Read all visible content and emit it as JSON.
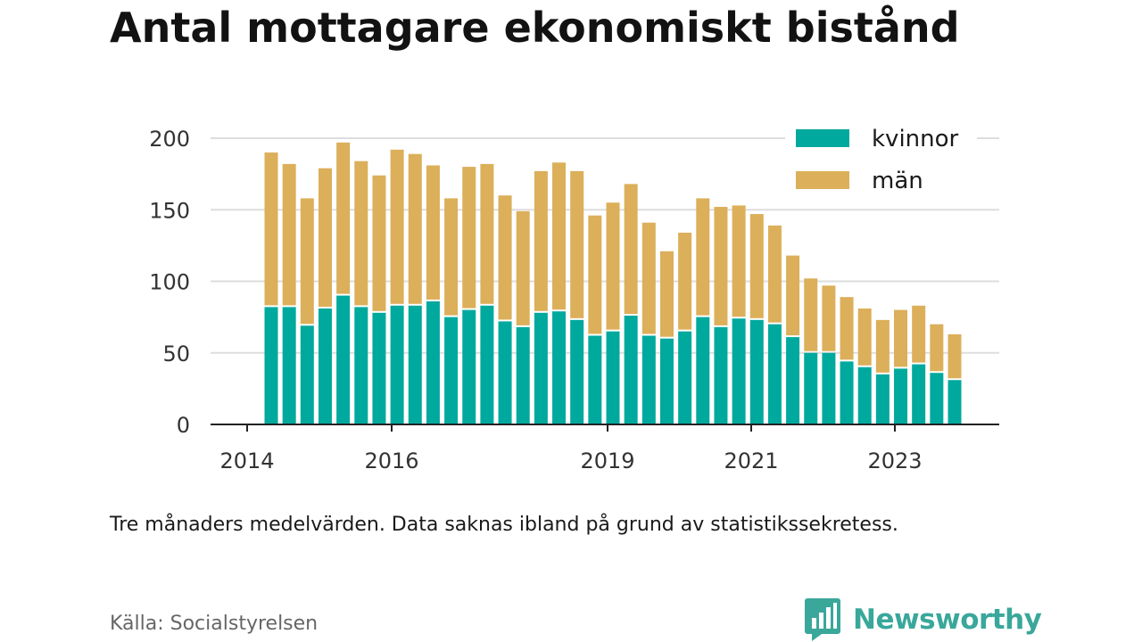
{
  "title": "Antal mottagare ekonomiskt bistånd",
  "note": "Tre månaders medelvärden. Data saknas ibland på grund av statistikssekretess.",
  "source": "Källa: Socialstyrelsen",
  "brand": {
    "name": "Newsworthy",
    "icon": "newsworthy-logo-icon"
  },
  "colors": {
    "kvinnor": "#00a99d",
    "man": "#dcaf5a",
    "grid": "#dddddd",
    "axis": "#222222",
    "brand": "#3aa79b"
  },
  "chart_data": {
    "type": "bar",
    "stacked": true,
    "grid": true,
    "legend_position": "top-right",
    "ylim": [
      0,
      200
    ],
    "y_ticks": [
      0,
      50,
      100,
      150,
      200
    ],
    "x_ticks": [
      "2014",
      "2016",
      "2019",
      "2021",
      "2023"
    ],
    "series": [
      {
        "name": "kvinnor",
        "values": [
          82,
          82,
          69,
          81,
          90,
          82,
          78,
          83,
          83,
          86,
          75,
          80,
          83,
          72,
          68,
          78,
          79,
          73,
          62,
          65,
          76,
          62,
          60,
          65,
          75,
          68,
          74,
          73,
          70,
          61,
          50,
          50,
          44,
          40,
          35,
          39,
          42,
          36,
          31
        ]
      },
      {
        "name": "män",
        "values": [
          108,
          100,
          89,
          98,
          107,
          102,
          96,
          109,
          106,
          95,
          83,
          100,
          99,
          88,
          81,
          99,
          104,
          104,
          84,
          90,
          92,
          79,
          61,
          69,
          83,
          84,
          79,
          74,
          69,
          57,
          52,
          47,
          45,
          41,
          38,
          41,
          41,
          34,
          32
        ]
      }
    ]
  }
}
